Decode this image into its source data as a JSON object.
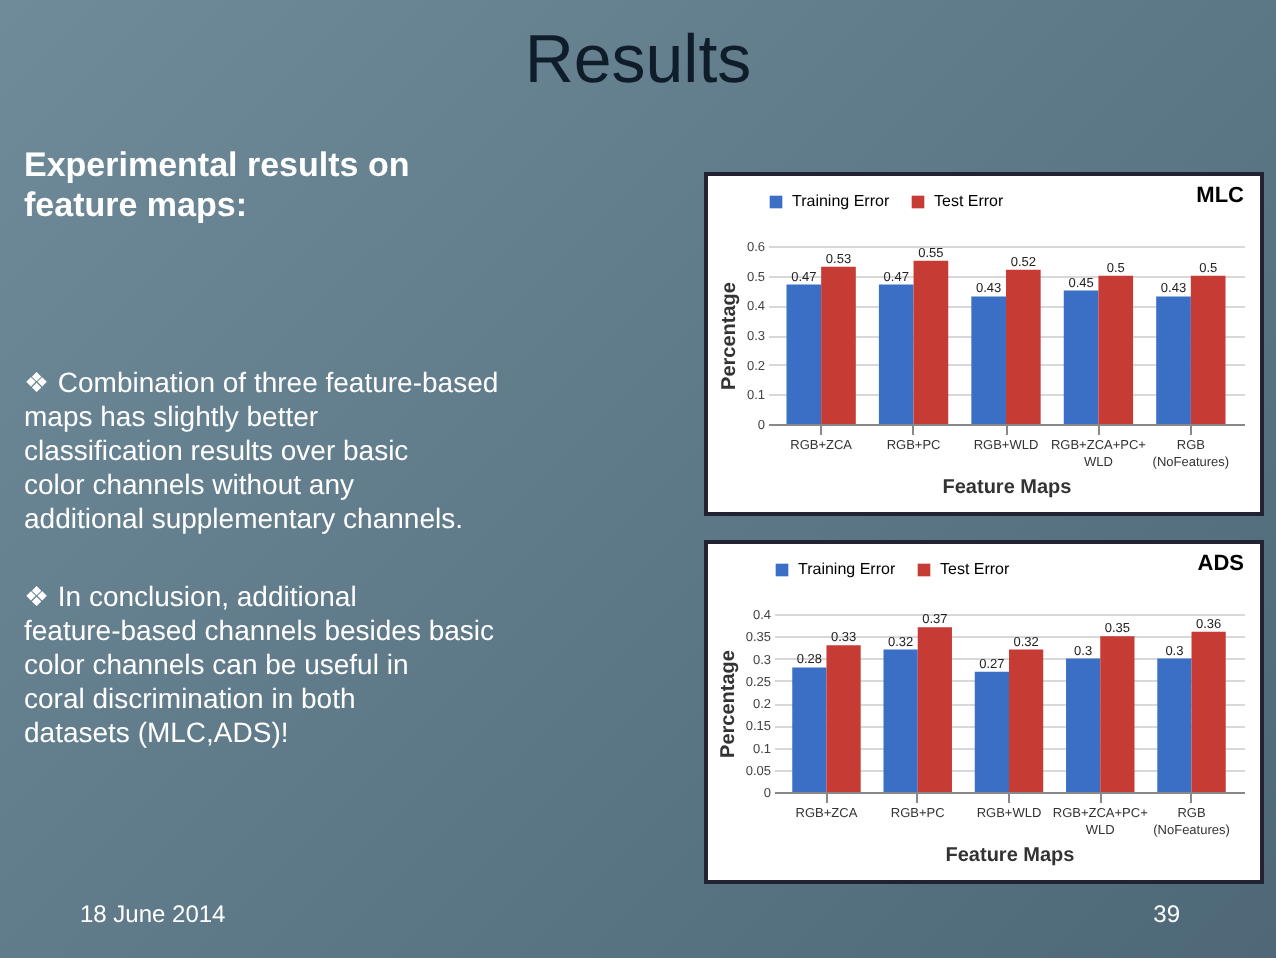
{
  "chart_data": [
    {
      "type": "other",
      "title": "Results",
      "subtitle": "Experimental results on feature maps:",
      "annotations": [
        "❖ Combination of three feature-based maps has slightly better classification results over basic color channels without any additional supplementary channels.",
        "❖ In conclusion, additional feature-based channels besides basic color channels can be useful in coral discrimination in both datasets (MLC,ADS)!",
        "18 June 2014",
        "39"
      ]
    },
    {
      "type": "bar",
      "title": "MLC",
      "xlabel": "Feature Maps",
      "ylabel": "Percentage",
      "categories": [
        "RGB+ZCA",
        "RGB+PC",
        "RGB+WLD",
        "RGB+ZCA+PC+ WLD",
        "RGB (NoFeatures)"
      ],
      "series": [
        {
          "name": "Training Error",
          "color": "#3b6fc6",
          "values": [
            0.47,
            0.47,
            0.43,
            0.45,
            0.43
          ]
        },
        {
          "name": "Test Error",
          "color": "#c63b34",
          "values": [
            0.53,
            0.55,
            0.52,
            0.5,
            0.5
          ]
        }
      ],
      "ylim": [
        0,
        0.6
      ],
      "yticks": [
        0,
        0.1,
        0.2,
        0.3,
        0.4,
        0.5,
        0.6
      ],
      "grid": "y",
      "legend": "top",
      "data_labels": true
    },
    {
      "type": "bar",
      "title": "ADS",
      "xlabel": "Feature Maps",
      "ylabel": "Percentage",
      "categories": [
        "RGB+ZCA",
        "RGB+PC",
        "RGB+WLD",
        "RGB+ZCA+PC+ WLD",
        "RGB (NoFeatures)"
      ],
      "series": [
        {
          "name": "Training Error",
          "color": "#3b6fc6",
          "values": [
            0.28,
            0.32,
            0.27,
            0.3,
            0.3
          ]
        },
        {
          "name": "Test Error",
          "color": "#c63b34",
          "values": [
            0.33,
            0.37,
            0.32,
            0.35,
            0.36
          ]
        }
      ],
      "ylim": [
        0,
        0.4
      ],
      "yticks": [
        0,
        0.05,
        0.1,
        0.15,
        0.2,
        0.25,
        0.3,
        0.35,
        0.4
      ],
      "grid": "y",
      "legend": "top",
      "data_labels": true
    }
  ]
}
